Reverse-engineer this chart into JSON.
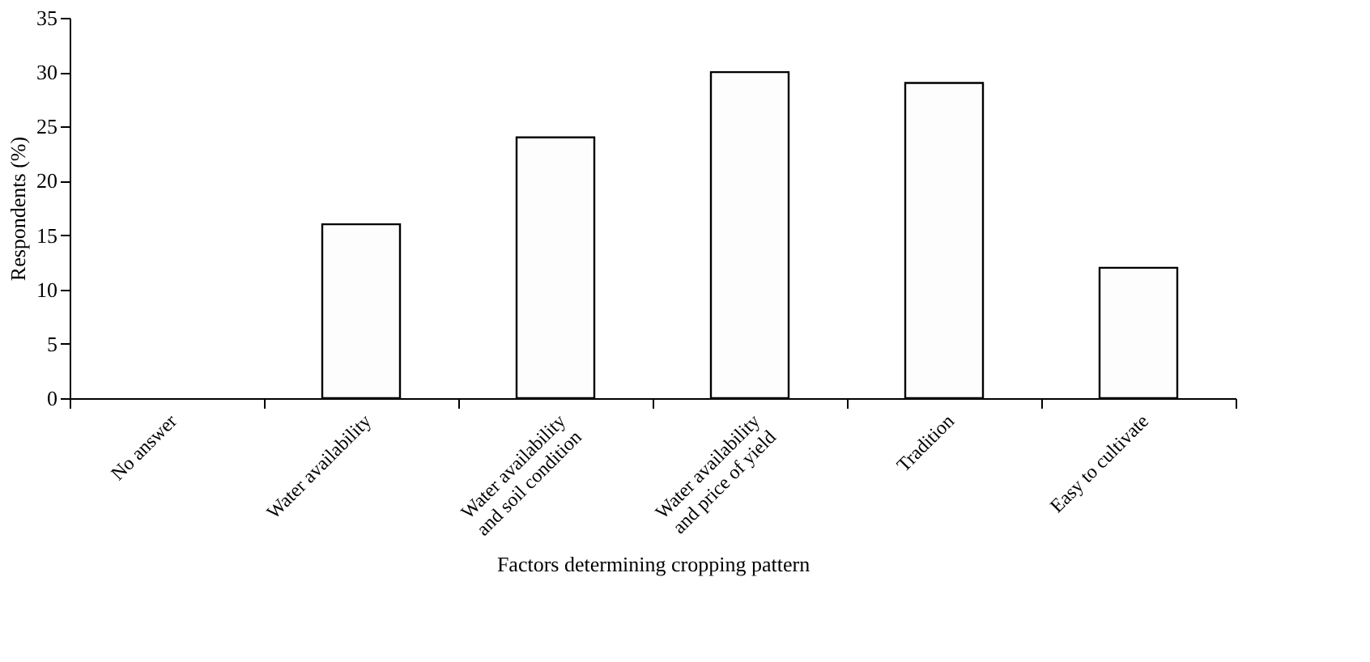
{
  "chart_data": {
    "type": "bar",
    "xlabel": "Factors determining cropping pattern",
    "ylabel": "Respondents (%)",
    "categories": [
      "No answer",
      "Water availability",
      "Water availability and soil condition",
      "Water availability and price of yield",
      "Tradition",
      "Easy to cultivate"
    ],
    "values": [
      0,
      16,
      24,
      30,
      29,
      12
    ],
    "color": "#fdfdfd",
    "ylim": [
      0,
      35
    ],
    "yticks": [
      0,
      5,
      10,
      15,
      20,
      25,
      30,
      35
    ],
    "grid": false
  }
}
